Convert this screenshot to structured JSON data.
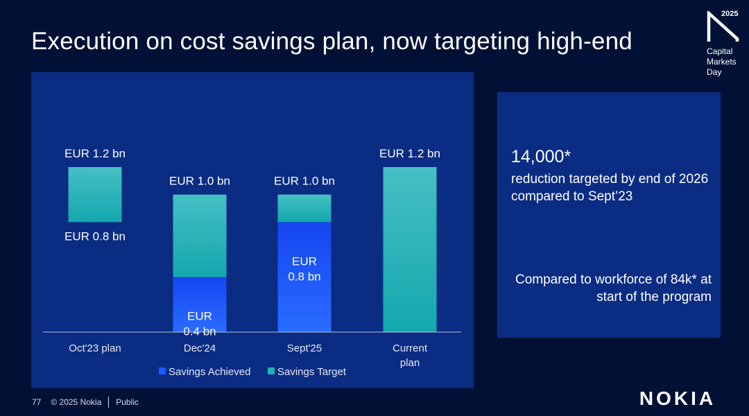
{
  "slide": {
    "title": "Execution on cost savings plan, now targeting high-end",
    "page_number": "77",
    "copyright": "© 2025 Nokia",
    "classification": "Public",
    "brand": "NOKIA"
  },
  "event_logo": {
    "year": "2025",
    "lines": [
      "Capital",
      "Markets",
      "Day"
    ]
  },
  "info": {
    "value": "14,000*",
    "description": "reduction targeted by end of 2026 compared to Sept’23",
    "note": "Compared to workforce of 84k* at start of the program"
  },
  "colors": {
    "background": "#001135",
    "panel": "#0a2c82",
    "achieved": "#1a5cff",
    "target": "#1fb3b8"
  },
  "chart_data": {
    "type": "bar",
    "stacked": true,
    "categories": [
      "Oct'23 plan",
      "Dec'24",
      "Sept'25",
      "Current plan"
    ],
    "category_lines": [
      [
        "Oct'23 plan"
      ],
      [
        "Dec'24"
      ],
      [
        "Sept'25"
      ],
      [
        "Current",
        "plan"
      ]
    ],
    "unit": "EUR bn",
    "ylim": [
      0,
      1.2
    ],
    "series": [
      {
        "name": "Savings Achieved",
        "values": [
          0,
          0.4,
          0.8,
          0
        ]
      },
      {
        "name": "Savings Target",
        "values": [
          0.4,
          0.6,
          0.2,
          1.2
        ]
      }
    ],
    "range_base": [
      0.8,
      0,
      0,
      0
    ],
    "top_labels": [
      "EUR 1.2 bn",
      "EUR 1.0 bn",
      "EUR 1.0 bn",
      "EUR 1.2 bn"
    ],
    "bottom_labels": [
      "EUR 0.8 bn",
      "",
      "",
      ""
    ],
    "inner_labels": [
      [],
      [
        "EUR",
        "0.4 bn"
      ],
      [
        "EUR",
        "0.8 bn"
      ],
      []
    ],
    "legend": [
      "Savings Achieved",
      "Savings Target"
    ]
  }
}
